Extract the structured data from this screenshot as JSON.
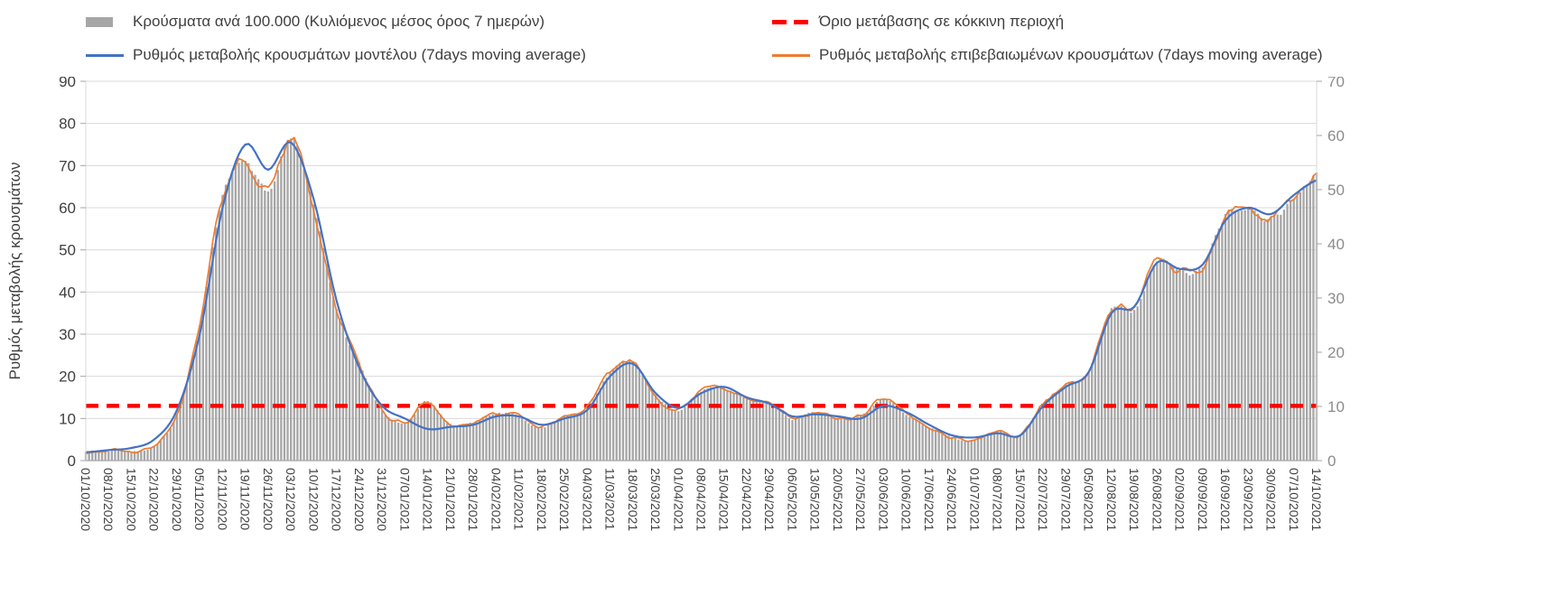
{
  "legend": {
    "bars_label": "Κρούσματα ανά 100.000 (Κυλιόμενος μέσος όρος 7 ημερών)",
    "threshold_label": "Όριο μετάβασης σε κόκκινη περιοχή",
    "model_label": "Ρυθμός μεταβολής κρουσμάτων μοντέλου (7days moving average)",
    "confirmed_label": "Ρυθμός μεταβολής επιβεβαιωμένων κρουσμάτων (7days moving average)"
  },
  "colors": {
    "bars": "#A6A6A6",
    "model": "#4472C4",
    "confirmed": "#ED7D31",
    "threshold": "#FF0000",
    "grid": "#D9D9D9",
    "axis": "#A6A6A6",
    "tick_text_left": "#404040",
    "tick_text_right": "#8C8C8C",
    "date_text": "#404040"
  },
  "chart_data": {
    "type": "combo: bar + line + line + threshold",
    "legend_position": "top",
    "grid": "horizontal, primary (left) axis",
    "categories": [
      "01/10/2020",
      "08/10/2020",
      "15/10/2020",
      "22/10/2020",
      "29/10/2020",
      "05/11/2020",
      "12/11/2020",
      "19/11/2020",
      "26/11/2020",
      "03/12/2020",
      "10/12/2020",
      "17/12/2020",
      "24/12/2020",
      "31/12/2020",
      "07/01/2021",
      "14/01/2021",
      "21/01/2021",
      "28/01/2021",
      "04/02/2021",
      "11/02/2021",
      "18/02/2021",
      "25/02/2021",
      "04/03/2021",
      "11/03/2021",
      "18/03/2021",
      "25/03/2021",
      "01/04/2021",
      "08/04/2021",
      "15/04/2021",
      "22/04/2021",
      "29/04/2021",
      "06/05/2021",
      "13/05/2021",
      "20/05/2021",
      "27/05/2021",
      "03/06/2021",
      "10/06/2021",
      "17/06/2021",
      "24/06/2021",
      "01/07/2021",
      "08/07/2021",
      "15/07/2021",
      "22/07/2021",
      "29/07/2021",
      "05/08/2021",
      "12/08/2021",
      "19/08/2021",
      "26/08/2021",
      "02/09/2021",
      "09/09/2021",
      "16/09/2021",
      "23/09/2021",
      "30/09/2021",
      "07/10/2021",
      "14/10/2021"
    ],
    "y_left": {
      "min": 0,
      "max": 90,
      "ticks": [
        0,
        10,
        20,
        30,
        40,
        50,
        60,
        70,
        80,
        90
      ],
      "title": "Ρυθμός μεταβολής κρουσμάτων"
    },
    "y_right": {
      "min": 0,
      "max": 70,
      "ticks": [
        0,
        10,
        20,
        30,
        40,
        50,
        60,
        70
      ]
    },
    "sampling_note": "weekly_values are anchors at the listed category dates; daily bars/lines are interpolated between them",
    "series": [
      {
        "key": "bars",
        "name": "Κρούσματα ανά 100.000 (Κυλιόμενος μέσος όρος 7 ημερών)",
        "type": "bar",
        "axis": "right",
        "color": "#A6A6A6",
        "weekly_values": [
          1.6,
          1.9,
          1.6,
          2.7,
          8.6,
          25,
          49,
          55,
          50,
          59.5,
          47,
          28,
          18,
          9.3,
          7,
          10.9,
          6.6,
          7,
          8.6,
          8.2,
          6.2,
          8.2,
          9.7,
          16.3,
          18.3,
          12.1,
          9.3,
          12.8,
          13.6,
          11.3,
          10.5,
          7.8,
          8.9,
          7.8,
          8.2,
          11.3,
          8.6,
          6.2,
          4.3,
          3.9,
          5.4,
          4.7,
          10.5,
          14,
          16.3,
          28,
          28,
          37,
          35,
          35.8,
          45.5,
          46.3,
          44.7,
          48.2,
          52.5
        ]
      },
      {
        "key": "model",
        "name": "Ρυθμός μεταβολής κρουσμάτων μοντέλου (7days moving average)",
        "type": "line",
        "axis": "left",
        "color": "#4472C4",
        "weekly_values": [
          2,
          2.5,
          3,
          5,
          12,
          30,
          60,
          75,
          69,
          75.5,
          62,
          38,
          22,
          13,
          10,
          7.5,
          8,
          8.5,
          10.5,
          10.5,
          8.5,
          10,
          12,
          20,
          23,
          16,
          12.5,
          16,
          17.5,
          15,
          13.5,
          10.5,
          11,
          10.5,
          10,
          13,
          11.5,
          8.5,
          6,
          5.5,
          6.5,
          6,
          13,
          17.5,
          21,
          35,
          36.5,
          47,
          45.5,
          46.5,
          57,
          60,
          58.5,
          63,
          66.5
        ]
      },
      {
        "key": "confirmed",
        "name": "Ρυθμός μεταβολής επιβεβαιωμένων κρουσμάτων (7days moving average)",
        "type": "line",
        "axis": "left",
        "color": "#ED7D31",
        "weekly_values": [
          2,
          2.5,
          2,
          3.5,
          11,
          32,
          63,
          71,
          64,
          76.5,
          60,
          36,
          23,
          12,
          9,
          14,
          8.5,
          9,
          11,
          10.5,
          8,
          10.5,
          12.5,
          21,
          23.5,
          15.5,
          12,
          16.5,
          17.5,
          14.5,
          13.5,
          10,
          11.5,
          10,
          10.5,
          14.5,
          11,
          8,
          5.5,
          5,
          7,
          6,
          13.5,
          18,
          21,
          36,
          36,
          47.5,
          45,
          46,
          58.5,
          59.5,
          57.5,
          62,
          67.5
        ]
      },
      {
        "key": "threshold",
        "name": "Όριο μετάβασης σε κόκκινη περιοχή",
        "type": "threshold",
        "axis": "left",
        "color": "#FF0000",
        "value": 13
      }
    ]
  }
}
